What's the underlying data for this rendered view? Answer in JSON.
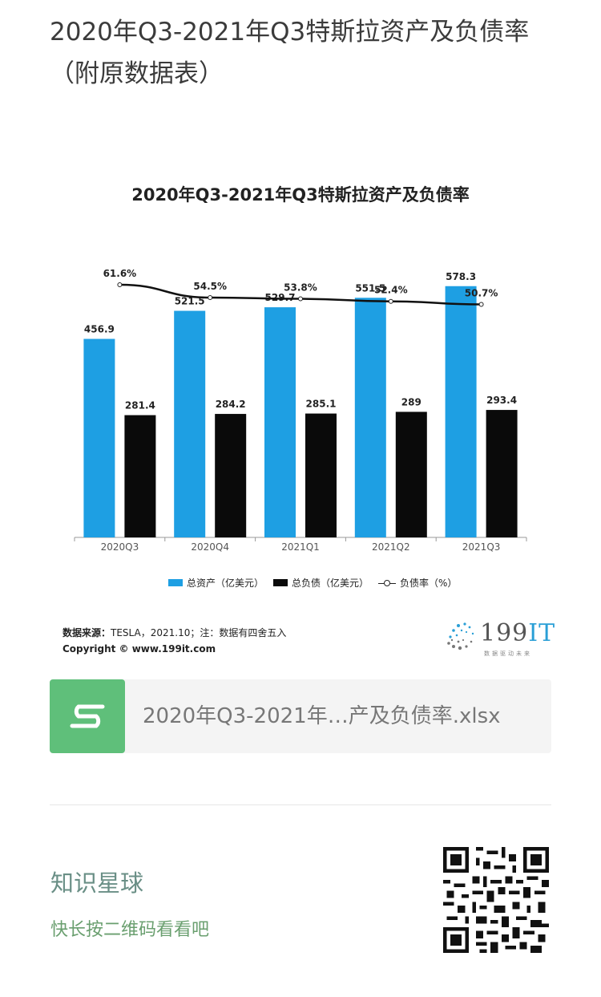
{
  "post": {
    "title": "2020年Q3-2021年Q3特斯拉资产及负债率（附原数据表）"
  },
  "chart_data": {
    "type": "bar",
    "title": "2020年Q3-2021年Q3特斯拉资产及负债率",
    "categories": [
      "2020Q3",
      "2020Q4",
      "2021Q1",
      "2021Q2",
      "2021Q3"
    ],
    "series": [
      {
        "name": "总资产（亿美元）",
        "type": "bar",
        "color": "#1e9fe3",
        "values": [
          456.9,
          521.5,
          529.7,
          551.5,
          578.3
        ]
      },
      {
        "name": "总负债（亿美元）",
        "type": "bar",
        "color": "#0a0a0a",
        "values": [
          281.4,
          284.2,
          285.1,
          289,
          293.4
        ]
      },
      {
        "name": "负债率（%）",
        "type": "line",
        "color": "#111111",
        "values": [
          61.6,
          54.5,
          53.8,
          52.4,
          50.7
        ],
        "labels": [
          "61.6%",
          "54.5%",
          "53.8%",
          "52.4%",
          "50.7%"
        ]
      }
    ],
    "bar_labels": [
      [
        "456.9",
        "521.5",
        "529.7",
        "551.5",
        "578.3"
      ],
      [
        "281.4",
        "284.2",
        "285.1",
        "289",
        "293.4"
      ]
    ],
    "legend_position": "bottom",
    "grid": false
  },
  "source": {
    "label": "数据来源：",
    "text": "TESLA，2021.10；注：数据有四舍五入",
    "copyright": "Copyright ©  www.199it.com"
  },
  "logo": {
    "text_num": "199",
    "text_it": "IT",
    "subtitle": "数据驱动未来"
  },
  "file": {
    "icon": "wps-spreadsheet-icon",
    "icon_color": "#5fbf7a",
    "name": "2020年Q3-2021年…产及负债率.xlsx"
  },
  "planet": {
    "title": "知识星球",
    "subtitle": "快长按二维码看看吧"
  }
}
